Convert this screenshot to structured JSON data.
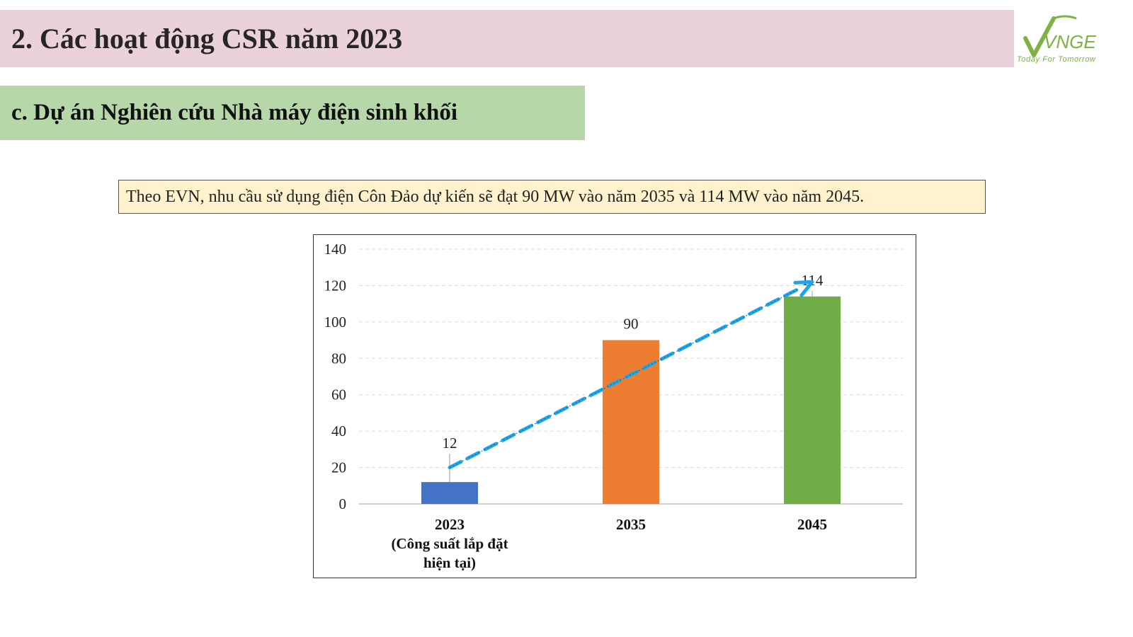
{
  "header": {
    "title": "2. Các hoạt động CSR năm 2023",
    "logo_text": "VNGE",
    "logo_tagline": "Today For Tomorrow"
  },
  "section": {
    "subtitle": "c. Dự án Nghiên cứu Nhà máy điện sinh khối"
  },
  "note": {
    "text": "Theo EVN, nhu cầu sử dụng điện Côn Đảo dự kiến sẽ đạt 90 MW vào năm 2035 và 114 MW vào năm 2045."
  },
  "chart_data": {
    "type": "bar",
    "categories": [
      [
        "2023",
        "(Công suất lắp đặt",
        "hiện tại)"
      ],
      [
        "2035"
      ],
      [
        "2045"
      ]
    ],
    "values": [
      12,
      90,
      114
    ],
    "colors": [
      "#4472c4",
      "#ed7d31",
      "#70ad47"
    ],
    "ylim": [
      0,
      140
    ],
    "yticks": [
      0,
      20,
      40,
      60,
      80,
      100,
      120,
      140
    ],
    "grid": true,
    "trend_arrow": {
      "from": [
        0,
        20
      ],
      "to": [
        2,
        122
      ],
      "color": "#1ea7e8"
    },
    "title": "",
    "xlabel": "",
    "ylabel": ""
  }
}
